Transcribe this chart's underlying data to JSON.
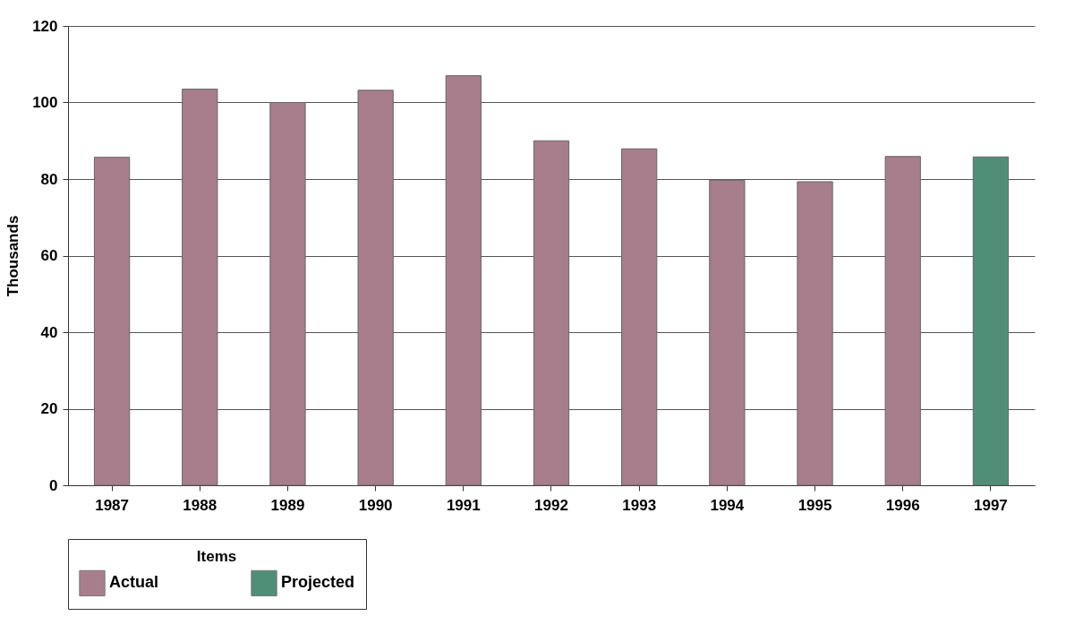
{
  "chart_data": {
    "type": "bar",
    "ylabel": "Thousands",
    "legend_title": "Items",
    "categories": [
      "1987",
      "1988",
      "1989",
      "1990",
      "1991",
      "1992",
      "1993",
      "1994",
      "1995",
      "1996",
      "1997"
    ],
    "series": [
      {
        "name": "Actual",
        "color": "#a87d8c",
        "values": [
          85.7,
          103.5,
          100,
          103.2,
          107,
          90,
          87.9,
          79.7,
          79.3,
          85.9,
          null
        ]
      },
      {
        "name": "Projected",
        "color": "#4f8f77",
        "values": [
          null,
          null,
          null,
          null,
          null,
          null,
          null,
          null,
          null,
          null,
          85.8
        ]
      }
    ],
    "ylim": [
      0,
      120
    ],
    "yticks": [
      0,
      20,
      40,
      60,
      80,
      100,
      120
    ],
    "grid": "y",
    "legend": "bottom"
  }
}
